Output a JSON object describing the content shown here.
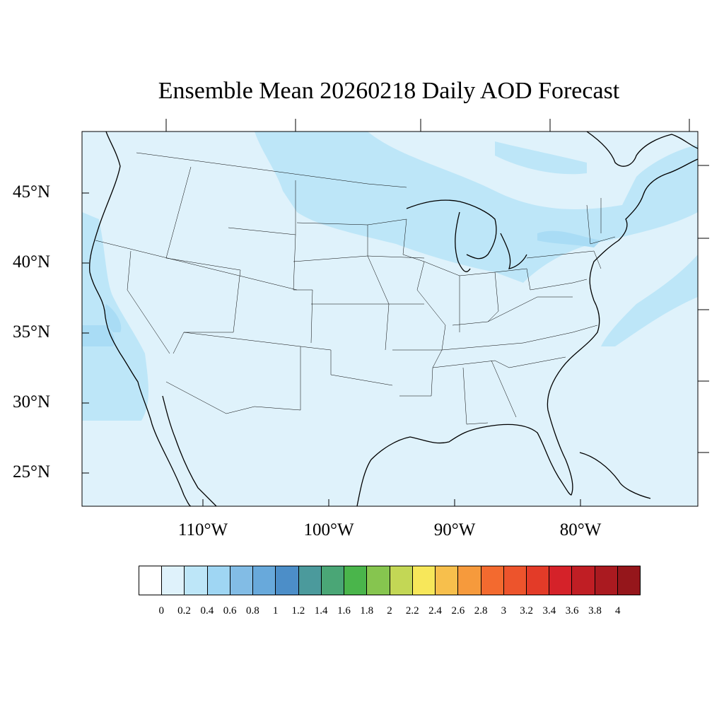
{
  "title": "Ensemble Mean 20260218 Daily AOD Forecast",
  "lat_labels": [
    "45°N",
    "40°N",
    "35°N",
    "30°N",
    "25°N"
  ],
  "lon_labels": [
    "110°W",
    "100°W",
    "90°W",
    "80°W"
  ],
  "colorbar": {
    "labels": [
      "0",
      "0.2",
      "0.4",
      "0.6",
      "0.8",
      "1",
      "1.2",
      "1.4",
      "1.6",
      "1.8",
      "2",
      "2.2",
      "2.4",
      "2.6",
      "2.8",
      "3",
      "3.2",
      "3.4",
      "3.6",
      "3.8",
      "4"
    ],
    "colors": [
      "#ffffff",
      "#dff2fb",
      "#bde6f8",
      "#9fd6f3",
      "#82bce5",
      "#68a9db",
      "#4c8ec8",
      "#4b9a9c",
      "#4aa676",
      "#4ab54b",
      "#86c54f",
      "#c3d755",
      "#f7e75a",
      "#f7bf4c",
      "#f69a3c",
      "#f36a2f",
      "#ed542c",
      "#e33b28",
      "#d52229",
      "#c01e24",
      "#aa1a20",
      "#95161b"
    ]
  },
  "map": {
    "background_color": "#dff2fb",
    "plume_color": "#bde6f8",
    "accent_color": "#a9dcf5",
    "lat_ticks": [
      45,
      40,
      35,
      30,
      25
    ],
    "lon_ticks": [
      -110,
      -100,
      -90,
      -80
    ]
  }
}
